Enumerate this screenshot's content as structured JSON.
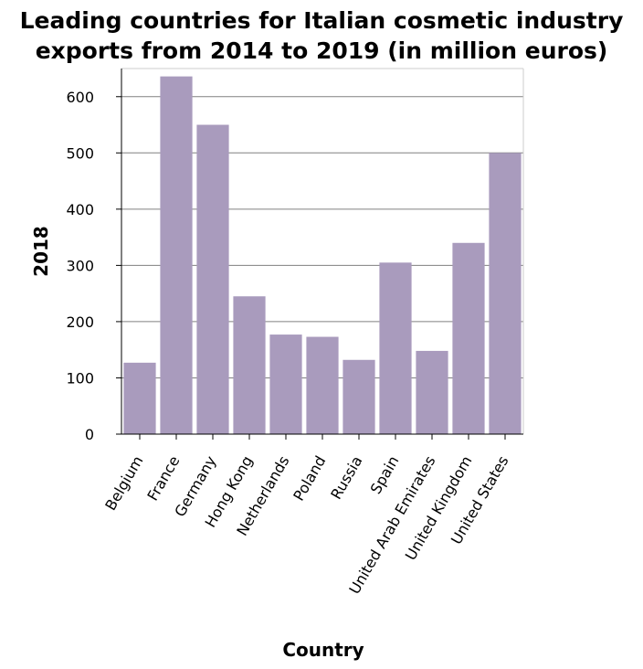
{
  "chart_data": {
    "type": "bar",
    "title_lines": [
      "Leading countries for Italian cosmetic industry",
      "exports from 2014 to 2019 (in million euros)"
    ],
    "xlabel": "Country",
    "ylabel": "2018",
    "categories": [
      "Belgium",
      "France",
      "Germany",
      "Hong Kong",
      "Netherlands",
      "Poland",
      "Russia",
      "Spain",
      "United Arab Emirates",
      "United Kingdom",
      "United States"
    ],
    "values": [
      127,
      636,
      550,
      245,
      177,
      173,
      132,
      305,
      148,
      340,
      500
    ],
    "ylim": [
      0,
      650
    ],
    "yticks": [
      0,
      100,
      200,
      300,
      400,
      500,
      600
    ],
    "grid": true,
    "bar_color": "#a99bbd",
    "grid_color": "#808080"
  }
}
